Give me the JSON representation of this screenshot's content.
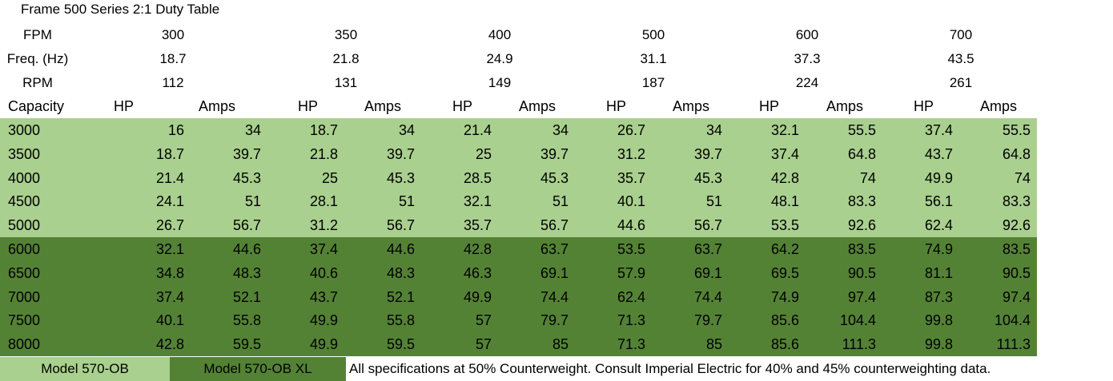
{
  "title": "Frame 500 Series 2:1 Duty Table",
  "header_rows": [
    {
      "label": "FPM",
      "values": [
        "300",
        "350",
        "400",
        "500",
        "600",
        "700"
      ]
    },
    {
      "label": "Freq. (Hz)",
      "values": [
        "18.7",
        "21.8",
        "24.9",
        "31.1",
        "37.3",
        "43.5"
      ]
    },
    {
      "label": "RPM",
      "values": [
        "112",
        "131",
        "149",
        "187",
        "224",
        "261"
      ]
    }
  ],
  "columns": {
    "capacity": "Capacity",
    "pairs": [
      {
        "hp": "HP",
        "amps": "Amps"
      },
      {
        "hp": "HP",
        "amps": "Amps"
      },
      {
        "hp": "HP",
        "amps": "Amps"
      },
      {
        "hp": "HP",
        "amps": "Amps"
      },
      {
        "hp": "HP",
        "amps": "Amps"
      },
      {
        "hp": "HP",
        "amps": "Amps"
      }
    ]
  },
  "rows": [
    {
      "capacity": "3000",
      "shade": "light",
      "cells": [
        "16",
        "34",
        "18.7",
        "34",
        "21.4",
        "34",
        "26.7",
        "34",
        "32.1",
        "55.5",
        "37.4",
        "55.5"
      ]
    },
    {
      "capacity": "3500",
      "shade": "light",
      "cells": [
        "18.7",
        "39.7",
        "21.8",
        "39.7",
        "25",
        "39.7",
        "31.2",
        "39.7",
        "37.4",
        "64.8",
        "43.7",
        "64.8"
      ]
    },
    {
      "capacity": "4000",
      "shade": "light",
      "cells": [
        "21.4",
        "45.3",
        "25",
        "45.3",
        "28.5",
        "45.3",
        "35.7",
        "45.3",
        "42.8",
        "74",
        "49.9",
        "74"
      ]
    },
    {
      "capacity": "4500",
      "shade": "light",
      "cells": [
        "24.1",
        "51",
        "28.1",
        "51",
        "32.1",
        "51",
        "40.1",
        "51",
        "48.1",
        "83.3",
        "56.1",
        "83.3"
      ]
    },
    {
      "capacity": "5000",
      "shade": "light",
      "cells": [
        "26.7",
        "56.7",
        "31.2",
        "56.7",
        "35.7",
        "56.7",
        "44.6",
        "56.7",
        "53.5",
        "92.6",
        "62.4",
        "92.6"
      ]
    },
    {
      "capacity": "6000",
      "shade": "dark",
      "cells": [
        "32.1",
        "44.6",
        "37.4",
        "44.6",
        "42.8",
        "63.7",
        "53.5",
        "63.7",
        "64.2",
        "83.5",
        "74.9",
        "83.5"
      ]
    },
    {
      "capacity": "6500",
      "shade": "dark",
      "cells": [
        "34.8",
        "48.3",
        "40.6",
        "48.3",
        "46.3",
        "69.1",
        "57.9",
        "69.1",
        "69.5",
        "90.5",
        "81.1",
        "90.5"
      ]
    },
    {
      "capacity": "7000",
      "shade": "dark",
      "cells": [
        "37.4",
        "52.1",
        "43.7",
        "52.1",
        "49.9",
        "74.4",
        "62.4",
        "74.4",
        "74.9",
        "97.4",
        "87.3",
        "97.4"
      ]
    },
    {
      "capacity": "7500",
      "shade": "dark",
      "cells": [
        "40.1",
        "55.8",
        "49.9",
        "55.8",
        "57",
        "79.7",
        "71.3",
        "79.7",
        "85.6",
        "104.4",
        "99.8",
        "104.4"
      ]
    },
    {
      "capacity": "8000",
      "shade": "dark",
      "cells": [
        "42.8",
        "59.5",
        "49.9",
        "59.5",
        "57",
        "85",
        "71.3",
        "85",
        "85.6",
        "111.3",
        "99.8",
        "111.3"
      ]
    }
  ],
  "footer": {
    "model_a": "Model 570-OB",
    "model_b": "Model 570-OB XL",
    "note": "All specifications at 50% Counterweight.  Consult Imperial Electric for 40% and 45% counterweighting data."
  },
  "colors": {
    "light_green": "#a9d08e",
    "dark_green": "#548235"
  }
}
